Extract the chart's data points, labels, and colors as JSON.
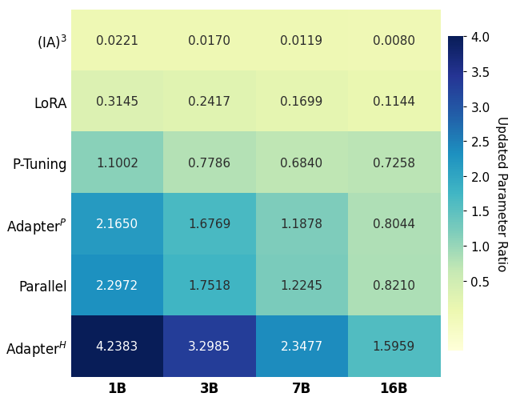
{
  "row_labels_raw": [
    "(IA)$^3$",
    "LoRA",
    "P-Tuning",
    "Adapter$^P$",
    "Parallel",
    "Adapter$^H$"
  ],
  "col_labels": [
    "1B",
    "3B",
    "7B",
    "16B"
  ],
  "values": [
    [
      0.0221,
      0.017,
      0.0119,
      0.008
    ],
    [
      0.3145,
      0.2417,
      0.1699,
      0.1144
    ],
    [
      1.1002,
      0.7786,
      0.684,
      0.7258
    ],
    [
      2.165,
      1.6769,
      1.1878,
      0.8044
    ],
    [
      2.2972,
      1.7518,
      1.2245,
      0.821
    ],
    [
      4.2383,
      3.2985,
      2.3477,
      1.5959
    ]
  ],
  "vmin": -0.5,
  "vmax": 4.0,
  "cmap": "YlGnBu",
  "colorbar_label": "Updated Parameter Ratio",
  "colorbar_ticks": [
    0.5,
    1.0,
    1.5,
    2.0,
    2.5,
    3.0,
    3.5,
    4.0
  ],
  "text_threshold": 1.8,
  "dark_text_color": "#2a2a2a",
  "light_text_color": "#ffffff",
  "cell_fontsize": 11,
  "cbar_fontsize": 11,
  "cbar_label_fontsize": 11,
  "tick_fontsize": 12,
  "row_label_fontsize": 12,
  "fig_width": 6.4,
  "fig_height": 5.02,
  "dpi": 100
}
